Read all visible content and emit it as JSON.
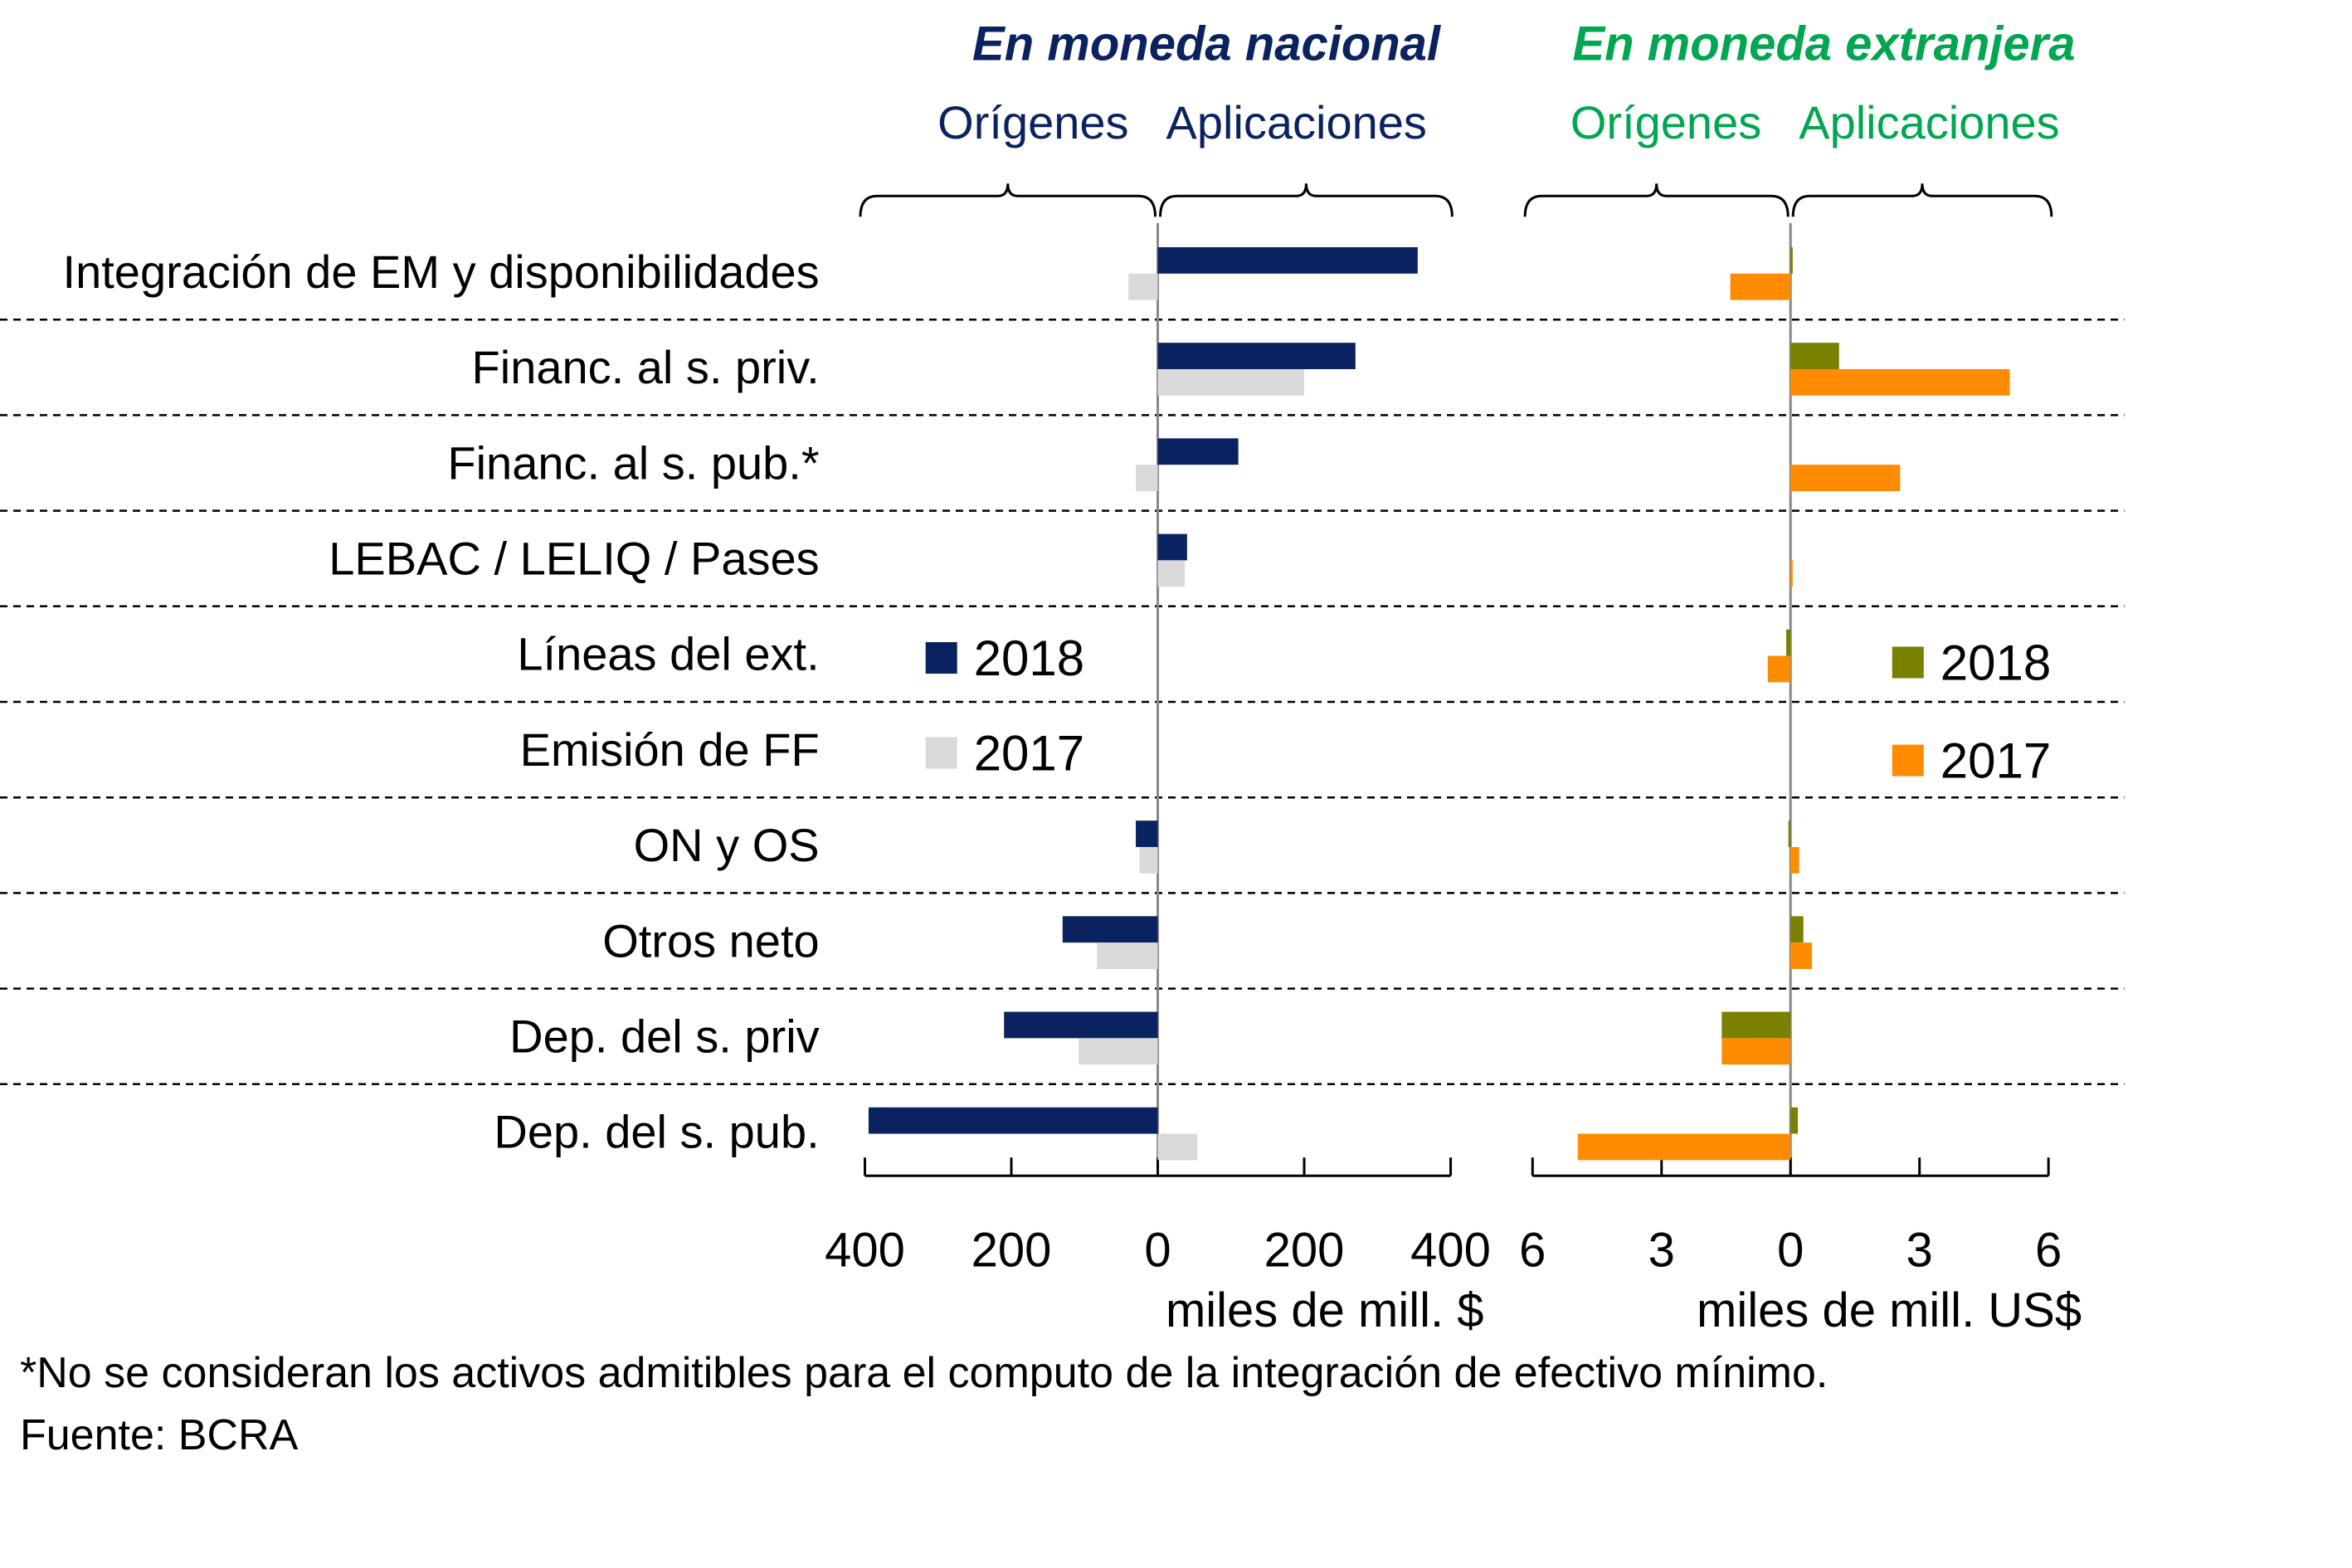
{
  "chart_data": [
    {
      "type": "bar",
      "orientation": "horizontal",
      "title": "En moneda nacional",
      "subtitle_left": "Orígenes",
      "subtitle_right": "Aplicaciones",
      "title_color": "#0B2260",
      "xlabel": "miles de mill. $",
      "xlim": [
        -400,
        400
      ],
      "xticks": [
        400,
        200,
        0,
        200,
        400
      ],
      "categories": [
        "Integración de EM y disponibilidades",
        "Financ. al s. priv.",
        "Financ. al s. pub.*",
        "LEBAC / LELIQ / Pases",
        "Líneas del ext.",
        "Emisión de FF",
        "ON y OS",
        "Otros neto",
        "Dep. del s. priv",
        "Dep. del s. pub."
      ],
      "series": [
        {
          "name": "2018",
          "color": "#0B2260",
          "values": [
            355,
            270,
            110,
            40,
            0,
            0,
            -30,
            -130,
            -210,
            -395
          ]
        },
        {
          "name": "2017",
          "color": "#D9D9D9",
          "values": [
            -40,
            200,
            -30,
            37,
            0,
            0,
            -25,
            -83,
            -108,
            54
          ]
        }
      ],
      "legend": "center-left"
    },
    {
      "type": "bar",
      "orientation": "horizontal",
      "title": "En moneda extranjera",
      "subtitle_left": "Orígenes",
      "subtitle_right": "Aplicaciones",
      "title_color": "#00A650",
      "xlabel": "miles de mill. US$",
      "xlim": [
        -6,
        6
      ],
      "xticks": [
        6,
        3,
        0,
        3,
        6
      ],
      "series": [
        {
          "name": "2018",
          "color": "#7A8000",
          "values": [
            0.05,
            1.13,
            0,
            0,
            -0.1,
            0,
            -0.05,
            0.3,
            -1.6,
            0.17
          ]
        },
        {
          "name": "2017",
          "color": "#FF8C00",
          "values": [
            -1.4,
            5.1,
            2.55,
            0.05,
            -0.53,
            0,
            0.2,
            0.5,
            -1.6,
            -4.95
          ]
        }
      ],
      "legend": "center-right"
    }
  ],
  "footnote": "*No se consideran los activos admitibles para el computo de la integración de efectivo mínimo.",
  "source": "Fuente: BCRA"
}
